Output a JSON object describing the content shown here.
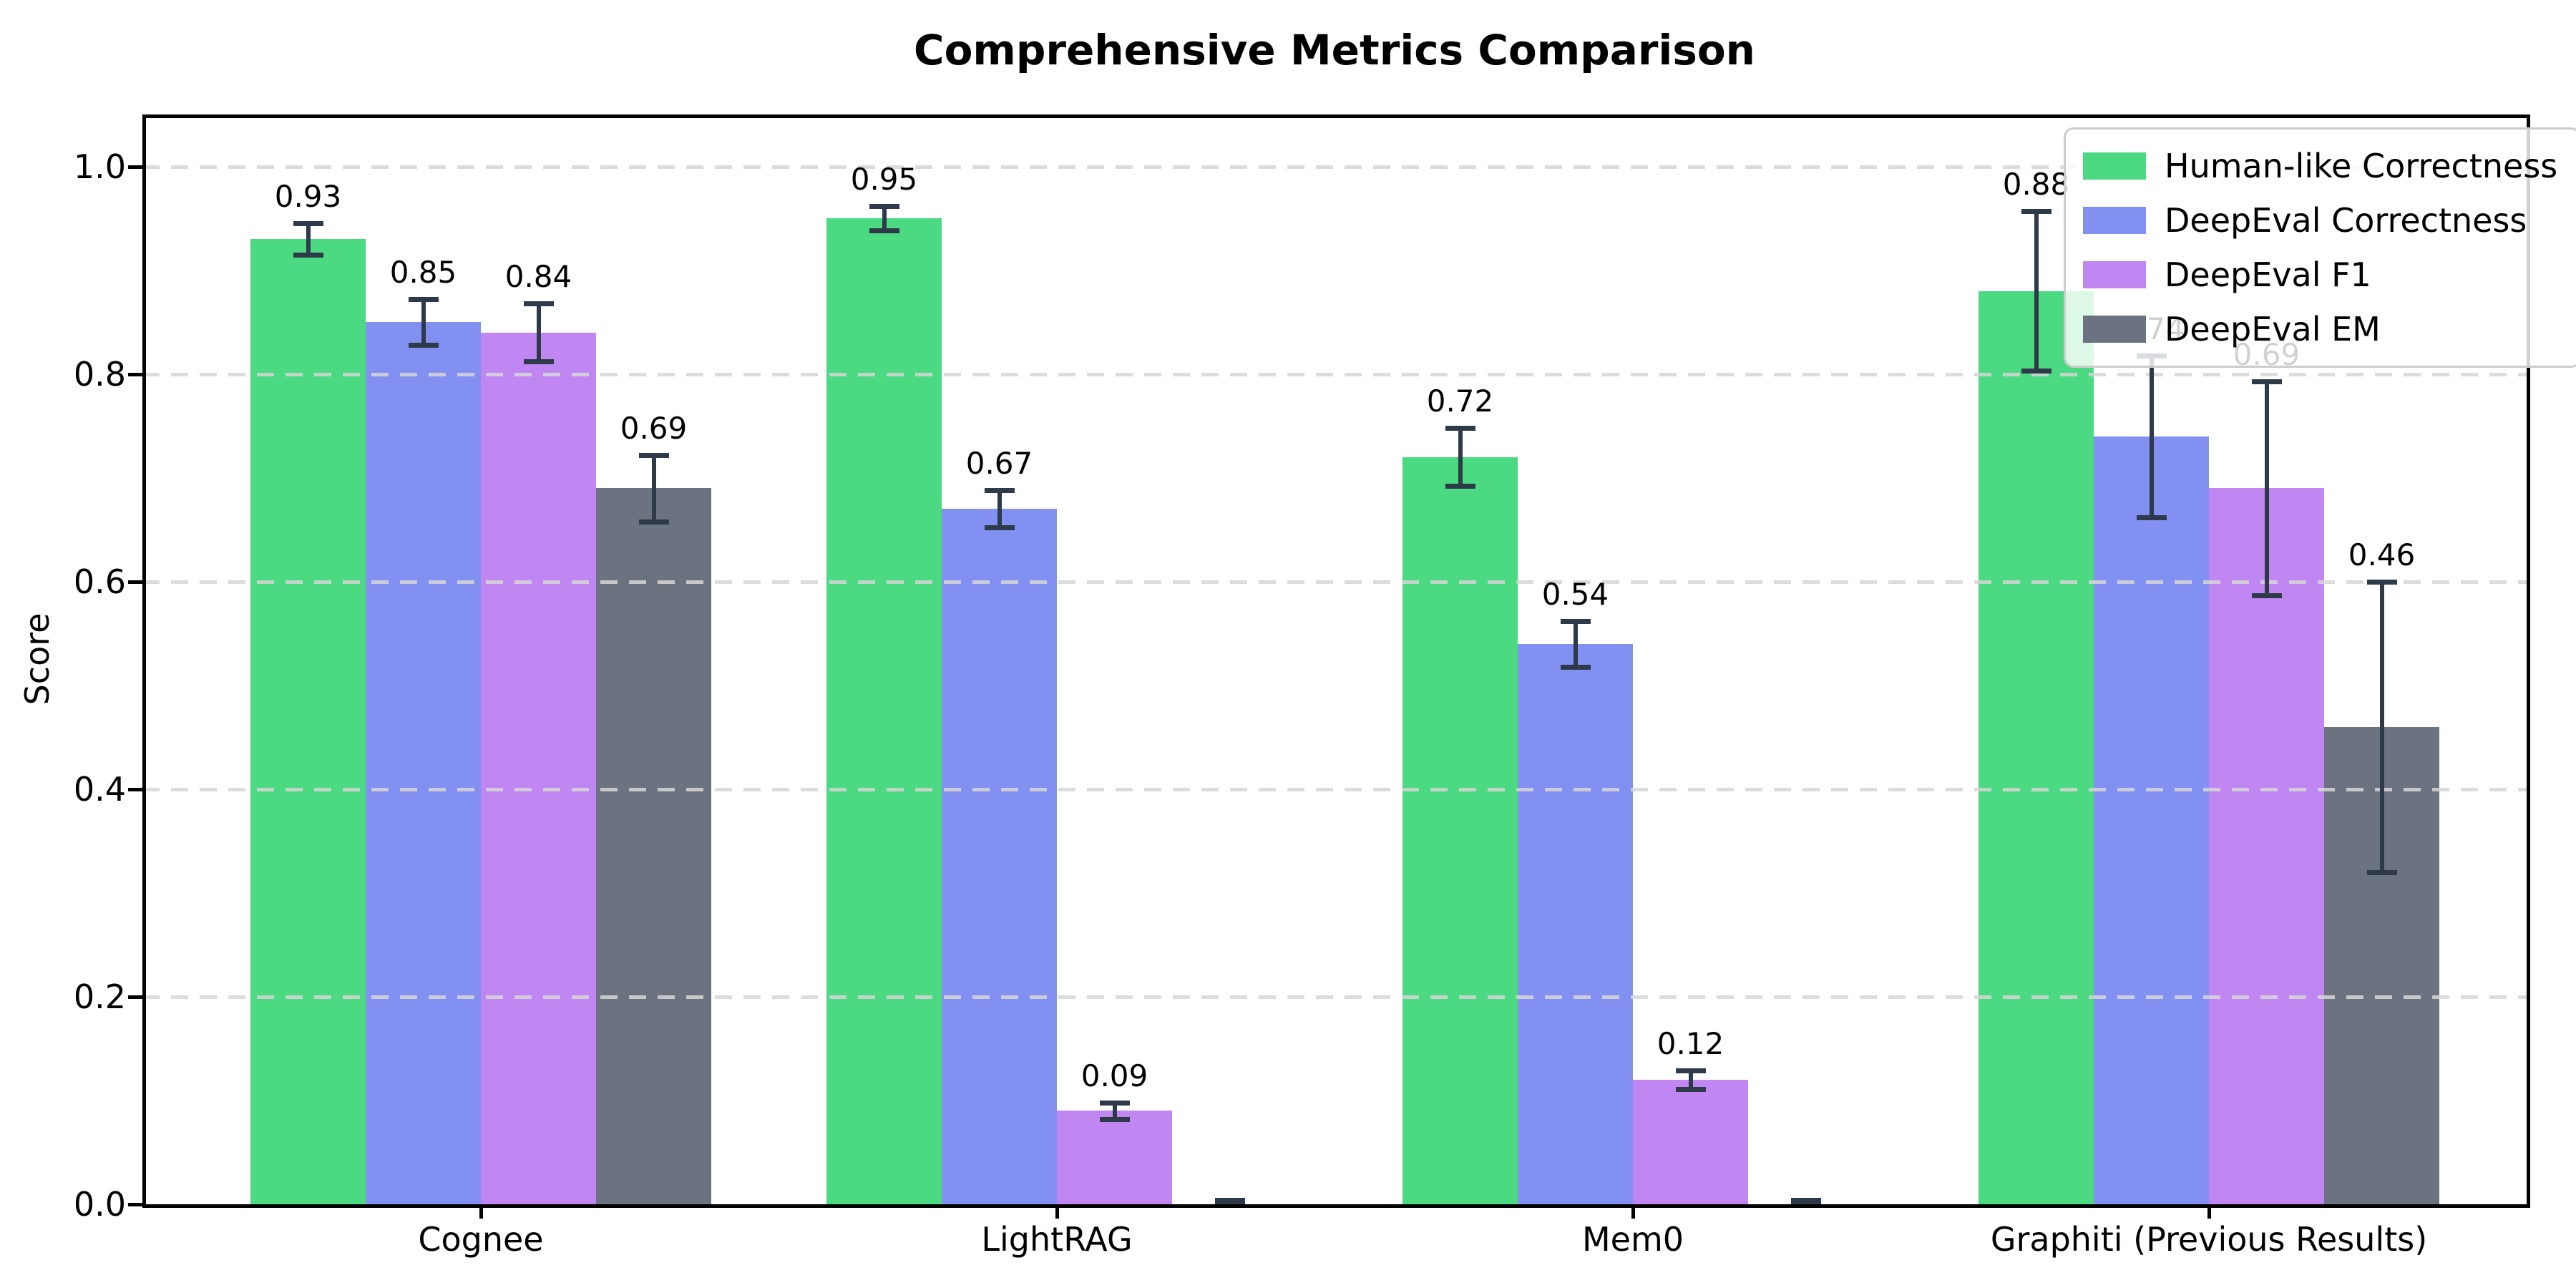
{
  "figure": {
    "title": "Comprehensive Metrics Comparison",
    "background_color": "#ffffff"
  },
  "chart_data": {
    "type": "bar",
    "title": "Comprehensive Metrics Comparison",
    "xlabel": "",
    "ylabel": "Score",
    "categories": [
      "Cognee",
      "LightRAG",
      "Mem0",
      "Graphiti (Previous Results)"
    ],
    "series": [
      {
        "name": "Human-like Correctness",
        "color": "#4bd981",
        "values": [
          0.93,
          0.95,
          0.72,
          0.88
        ],
        "errors": [
          0.015,
          0.012,
          0.028,
          0.077
        ],
        "labels": [
          "0.93",
          "0.95",
          "0.72",
          "0.88"
        ]
      },
      {
        "name": "DeepEval Correctness",
        "color": "#8290f2",
        "values": [
          0.85,
          0.67,
          0.54,
          0.74
        ],
        "errors": [
          0.022,
          0.018,
          0.022,
          0.078
        ],
        "labels": [
          "0.85",
          "0.67",
          "0.54",
          "0.74"
        ]
      },
      {
        "name": "DeepEval F1",
        "color": "#c086f2",
        "values": [
          0.84,
          0.09,
          0.12,
          0.69
        ],
        "errors": [
          0.028,
          0.008,
          0.009,
          0.103
        ],
        "labels": [
          "0.84",
          "0.09",
          "0.12",
          "0.69"
        ]
      },
      {
        "name": "DeepEval EM",
        "color": "#6b7280",
        "values": [
          0.69,
          0.0,
          0.0,
          0.46
        ],
        "errors": [
          0.032,
          0.004,
          0.004,
          0.14
        ],
        "labels": [
          "0.69",
          null,
          null,
          "0.46"
        ]
      }
    ],
    "ylim": [
      0,
      1.05
    ],
    "yticks": [
      {
        "value": 0.0,
        "label": "0.0"
      },
      {
        "value": 0.2,
        "label": "0.2"
      },
      {
        "value": 0.4,
        "label": "0.4"
      },
      {
        "value": 0.6,
        "label": "0.6"
      },
      {
        "value": 0.8,
        "label": "0.8"
      },
      {
        "value": 1.0,
        "label": "1.0"
      }
    ],
    "grid": {
      "axis": "y",
      "style": "dashed",
      "color": "#d6d6d6"
    },
    "error_bar_color": "#2e3a49",
    "legend": {
      "position": "upper right",
      "entries": [
        "Human-like Correctness",
        "DeepEval Correctness",
        "DeepEval F1",
        "DeepEval EM"
      ]
    }
  }
}
